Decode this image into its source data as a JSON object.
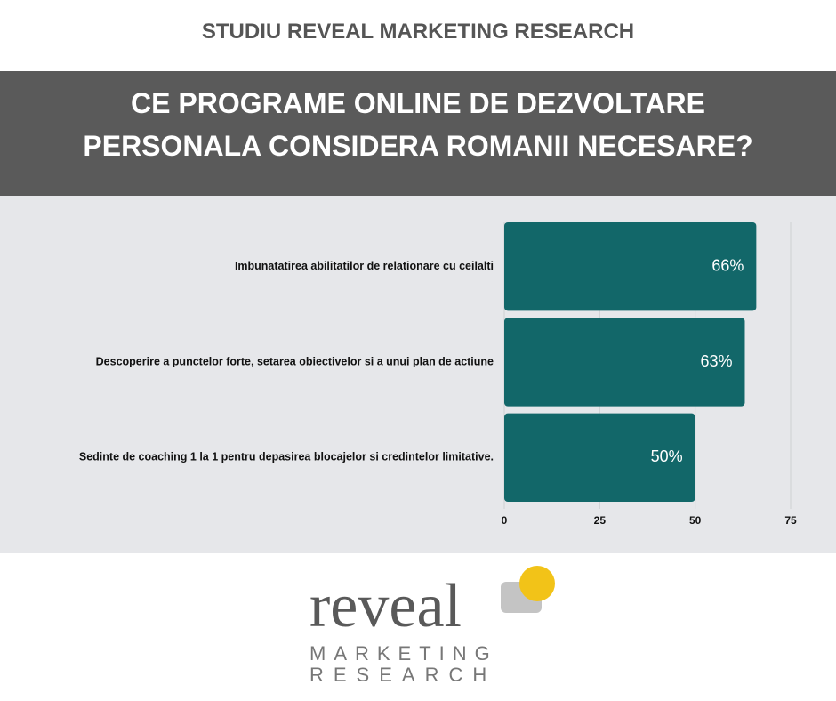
{
  "header": {
    "subtitle": "STUDIU REVEAL MARKETING RESEARCH",
    "title_lines": [
      "CE PROGRAME ONLINE DE DEZVOLTARE",
      "PERSONALA CONSIDERA ROMANII NECESARE?"
    ]
  },
  "chart_data": {
    "type": "barh",
    "categories": [
      "Imbunatatirea abilitatilor de relationare cu ceilalti",
      "Descoperire a punctelor forte, setarea obiectivelor si a unui plan de actiune",
      "Sedinte de coaching 1 la 1 pentru depasirea blocajelor si credintelor limitative."
    ],
    "values": [
      66,
      63,
      50
    ],
    "value_labels": [
      "66%",
      "63%",
      "50%"
    ],
    "color": "#126769",
    "xlim": [
      0,
      75
    ],
    "xticks": [
      0,
      25,
      50,
      75
    ],
    "grid": true
  },
  "logo": {
    "word": "reveal",
    "line1": "MARKETING",
    "line2": "RESEARCH"
  }
}
